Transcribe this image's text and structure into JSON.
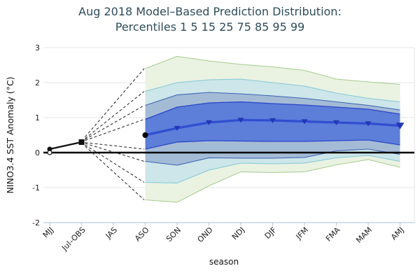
{
  "title": {
    "line1": "Aug 2018 Model–Based Prediction Distribution:",
    "line2": "Percentiles 1 5 15 25 75 85 95 99"
  },
  "axes": {
    "y_title": "NINO3.4 SST Anomaly (°C)",
    "x_title": "season",
    "y_tick_labels": [
      "3",
      "2",
      "1",
      "0",
      "-1",
      "-2"
    ],
    "y_tick_values": [
      3,
      2,
      1,
      0,
      -1,
      -2
    ]
  },
  "chart_data": {
    "type": "area",
    "subtype": "percentile-fan-forecast",
    "categories": [
      "MJJ",
      "Jul–OBS",
      "JAS",
      "ASO",
      "SON",
      "OND",
      "NDJ",
      "DJF",
      "JFM",
      "FMA",
      "MAM",
      "AMJ"
    ],
    "ylim": [
      -2,
      3
    ],
    "grid": true,
    "zero_line": true,
    "observed": {
      "categories": [
        "MJJ",
        "Jul–OBS"
      ],
      "values": [
        0.1,
        0.3
      ],
      "markers": [
        "circle",
        "square"
      ],
      "extra_marker": {
        "category": "MJJ",
        "value": 0.0,
        "style": "open-circle"
      }
    },
    "forecast": {
      "start_category": "ASO",
      "categories": [
        "ASO",
        "SON",
        "OND",
        "NDJ",
        "DJF",
        "JFM",
        "FMA",
        "MAM",
        "AMJ"
      ],
      "median": [
        0.5,
        0.7,
        0.86,
        0.93,
        0.92,
        0.89,
        0.86,
        0.83,
        0.77
      ],
      "median_marker": "triangle-down",
      "percentiles": {
        "p99": [
          2.4,
          2.75,
          2.62,
          2.52,
          2.45,
          2.35,
          2.1,
          2.02,
          1.95
        ],
        "p95": [
          1.75,
          2.0,
          2.08,
          2.1,
          2.0,
          1.9,
          1.7,
          1.55,
          1.45
        ],
        "p85": [
          1.35,
          1.65,
          1.72,
          1.68,
          1.62,
          1.55,
          1.45,
          1.35,
          1.22
        ],
        "p75": [
          0.95,
          1.3,
          1.42,
          1.45,
          1.4,
          1.36,
          1.3,
          1.24,
          1.1
        ],
        "p25": [
          0.1,
          0.3,
          0.34,
          0.33,
          0.32,
          0.32,
          0.34,
          0.36,
          0.22
        ],
        "p15": [
          -0.25,
          -0.36,
          -0.15,
          -0.16,
          -0.16,
          -0.14,
          0.05,
          0.1,
          -0.05
        ],
        "p5": [
          -0.85,
          -0.87,
          -0.5,
          -0.3,
          -0.32,
          -0.3,
          -0.15,
          -0.08,
          -0.25
        ],
        "p1": [
          -1.35,
          -1.42,
          -0.95,
          -0.55,
          -0.57,
          -0.55,
          -0.35,
          -0.2,
          -0.42
        ]
      },
      "dashed_fan_from": "Jul–OBS"
    }
  },
  "colors": {
    "title": "#2e4c5a",
    "band_1_99_fill": "#eaf2e2",
    "band_1_99_line": "#a6cc8e",
    "band_5_95_fill": "#cde6e9",
    "band_5_95_line": "#84c8d8",
    "band_15_85_fill": "#a4bbd6",
    "band_15_85_line": "#3d63b2",
    "band_25_75_fill": "#5d7ed9",
    "band_25_75_line": "#2b46c6",
    "median_line": "#2f4ed0",
    "median_marker": "#2336b8",
    "observed": "#111111",
    "zero_line": "#000000",
    "grid": "#e6e6e6",
    "axis": "#b8cde0",
    "tick_text": "#222222"
  }
}
